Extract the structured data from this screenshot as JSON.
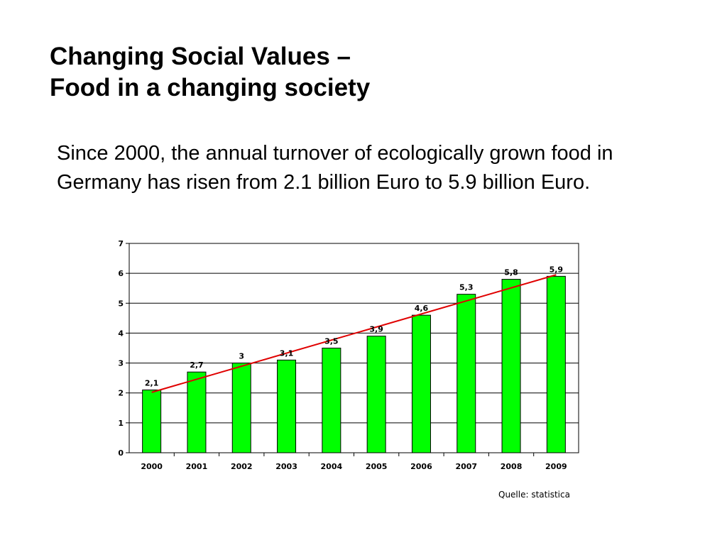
{
  "slide": {
    "title_line1": "Changing Social Values –",
    "title_line2": "Food in a changing society",
    "body": "Since 2000, the annual turnover of ecologically grown food in Germany has risen from 2.1 billion Euro to 5.9 billion Euro.",
    "source": "Quelle: statistica"
  },
  "chart_data": {
    "type": "bar",
    "title": "",
    "xlabel": "",
    "ylabel": "",
    "categories": [
      "2000",
      "2001",
      "2002",
      "2003",
      "2004",
      "2005",
      "2006",
      "2007",
      "2008",
      "2009"
    ],
    "series": [
      {
        "values": [
          2.1,
          2.7,
          3,
          3.1,
          3.5,
          3.9,
          4.6,
          5.3,
          5.8,
          5.9
        ],
        "labels": [
          "2,1",
          "2,7",
          "3",
          "3,1",
          "3,5",
          "3,9",
          "4,6",
          "5,3",
          "5,8",
          "5,9"
        ],
        "color": "#00ff00"
      }
    ],
    "trendline": {
      "type": "linear",
      "color": "#e00000",
      "from": 2.02,
      "to": 5.95
    },
    "ylim": [
      0,
      7
    ],
    "yticks": [
      0,
      1,
      2,
      3,
      4,
      5,
      6,
      7
    ],
    "grid": true,
    "legend": "none"
  }
}
